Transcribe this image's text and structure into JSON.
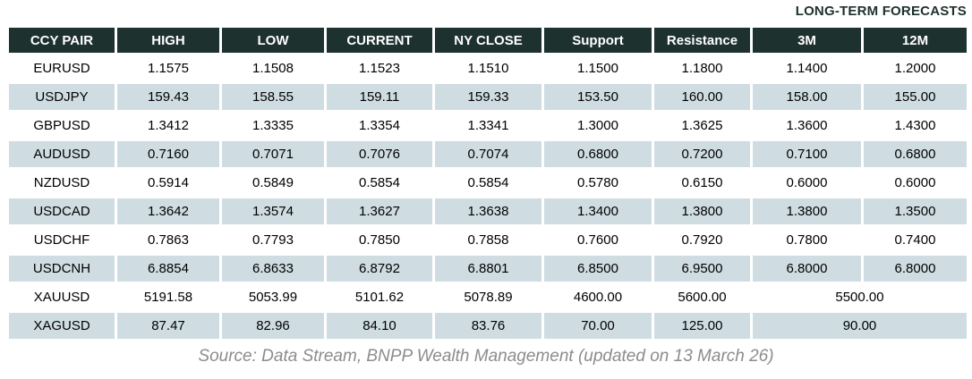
{
  "title": "LONG-TERM FORECASTS",
  "source_note": "Source: Data Stream, BNPP Wealth Management (updated on 13 March 26)",
  "colors": {
    "header_bg": "#1d312e",
    "header_text": "#ffffff",
    "row_alt_bg": "#cfdde3",
    "row_bg": "#ffffff",
    "title_text": "#1d312e",
    "source_text": "#8c8c8c"
  },
  "table": {
    "columns": [
      "CCY PAIR",
      "HIGH",
      "LOW",
      "CURRENT",
      "NY CLOSE",
      "Support",
      "Resistance",
      "3M",
      "12M"
    ],
    "rows": [
      {
        "pair": "EURUSD",
        "high": "1.1575",
        "low": "1.1508",
        "current": "1.1523",
        "ny_close": "1.1510",
        "support": "1.1500",
        "resistance": "1.1800",
        "m3": "1.1400",
        "m12": "1.2000"
      },
      {
        "pair": "USDJPY",
        "high": "159.43",
        "low": "158.55",
        "current": "159.11",
        "ny_close": "159.33",
        "support": "153.50",
        "resistance": "160.00",
        "m3": "158.00",
        "m12": "155.00"
      },
      {
        "pair": "GBPUSD",
        "high": "1.3412",
        "low": "1.3335",
        "current": "1.3354",
        "ny_close": "1.3341",
        "support": "1.3000",
        "resistance": "1.3625",
        "m3": "1.3600",
        "m12": "1.4300"
      },
      {
        "pair": "AUDUSD",
        "high": "0.7160",
        "low": "0.7071",
        "current": "0.7076",
        "ny_close": "0.7074",
        "support": "0.6800",
        "resistance": "0.7200",
        "m3": "0.7100",
        "m12": "0.6800"
      },
      {
        "pair": "NZDUSD",
        "high": "0.5914",
        "low": "0.5849",
        "current": "0.5854",
        "ny_close": "0.5854",
        "support": "0.5780",
        "resistance": "0.6150",
        "m3": "0.6000",
        "m12": "0.6000"
      },
      {
        "pair": "USDCAD",
        "high": "1.3642",
        "low": "1.3574",
        "current": "1.3627",
        "ny_close": "1.3638",
        "support": "1.3400",
        "resistance": "1.3800",
        "m3": "1.3800",
        "m12": "1.3500"
      },
      {
        "pair": "USDCHF",
        "high": "0.7863",
        "low": "0.7793",
        "current": "0.7850",
        "ny_close": "0.7858",
        "support": "0.7600",
        "resistance": "0.7920",
        "m3": "0.7800",
        "m12": "0.7400"
      },
      {
        "pair": "USDCNH",
        "high": "6.8854",
        "low": "6.8633",
        "current": "6.8792",
        "ny_close": "6.8801",
        "support": "6.8500",
        "resistance": "6.9500",
        "m3": "6.8000",
        "m12": "6.8000"
      },
      {
        "pair": "XAUUSD",
        "high": "5191.58",
        "low": "5053.99",
        "current": "5101.62",
        "ny_close": "5078.89",
        "support": "4600.00",
        "resistance": "5600.00",
        "forecast": "5500.00"
      },
      {
        "pair": "XAGUSD",
        "high": "87.47",
        "low": "82.96",
        "current": "84.10",
        "ny_close": "83.76",
        "support": "70.00",
        "resistance": "125.00",
        "forecast": "90.00"
      }
    ]
  }
}
